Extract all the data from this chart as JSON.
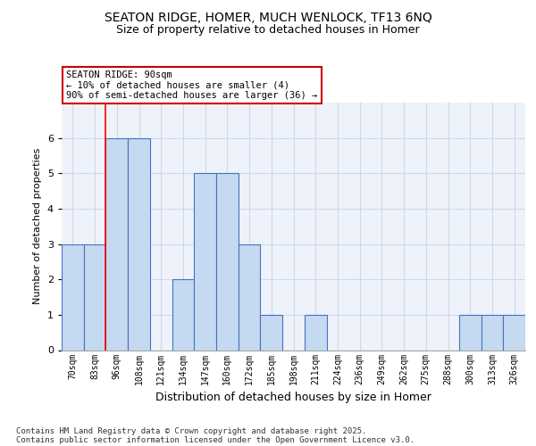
{
  "title_line1": "SEATON RIDGE, HOMER, MUCH WENLOCK, TF13 6NQ",
  "title_line2": "Size of property relative to detached houses in Homer",
  "xlabel": "Distribution of detached houses by size in Homer",
  "ylabel": "Number of detached properties",
  "categories": [
    "70sqm",
    "83sqm",
    "96sqm",
    "108sqm",
    "121sqm",
    "134sqm",
    "147sqm",
    "160sqm",
    "172sqm",
    "185sqm",
    "198sqm",
    "211sqm",
    "224sqm",
    "236sqm",
    "249sqm",
    "262sqm",
    "275sqm",
    "288sqm",
    "300sqm",
    "313sqm",
    "326sqm"
  ],
  "values": [
    3,
    3,
    6,
    6,
    0,
    2,
    5,
    5,
    3,
    1,
    0,
    1,
    0,
    0,
    0,
    0,
    0,
    0,
    1,
    1,
    1
  ],
  "bar_color": "#c5d9f1",
  "bar_edge_color": "#4472c4",
  "grid_color": "#d0d8e8",
  "background_color": "#eef2fa",
  "red_line_x": 1.5,
  "annotation_text": "SEATON RIDGE: 90sqm\n← 10% of detached houses are smaller (4)\n90% of semi-detached houses are larger (36) →",
  "annotation_box_color": "#ffffff",
  "annotation_box_edge_color": "#cc0000",
  "ylim": [
    0,
    7
  ],
  "yticks": [
    0,
    1,
    2,
    3,
    4,
    5,
    6
  ],
  "footer_line1": "Contains HM Land Registry data © Crown copyright and database right 2025.",
  "footer_line2": "Contains public sector information licensed under the Open Government Licence v3.0."
}
